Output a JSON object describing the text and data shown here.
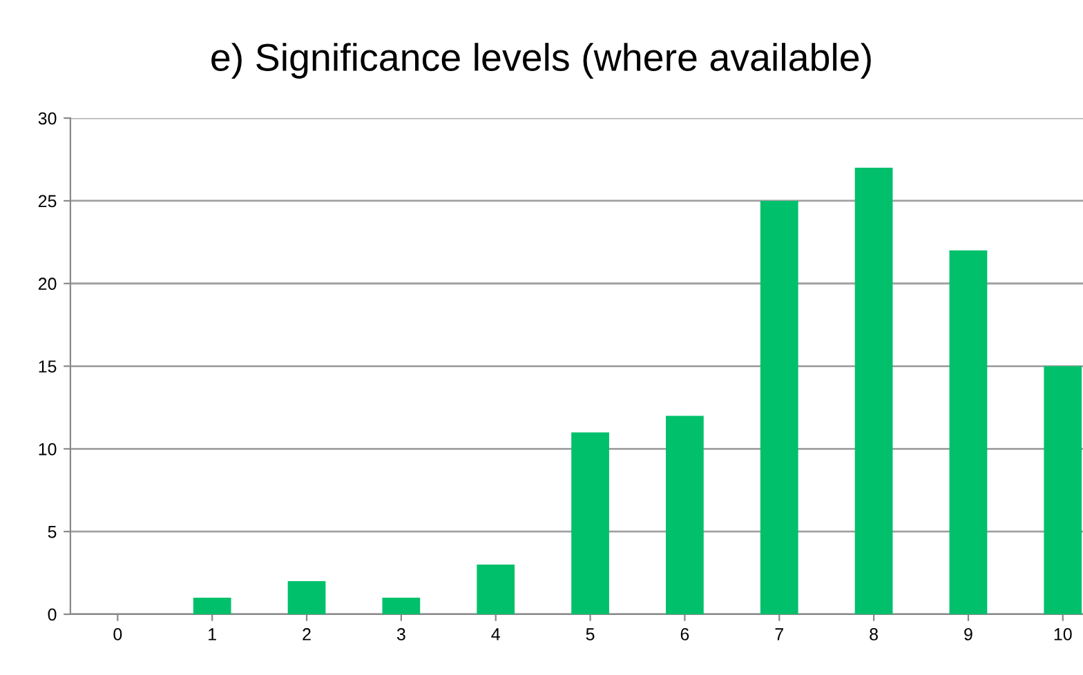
{
  "chart_data": {
    "type": "bar",
    "title": "e) Significance levels (where available)",
    "categories": [
      "0",
      "1",
      "2",
      "3",
      "4",
      "5",
      "6",
      "7",
      "8",
      "9",
      "10"
    ],
    "values": [
      0,
      1,
      2,
      1,
      3,
      11,
      12,
      25,
      27,
      22,
      15
    ],
    "color": "#00c06b",
    "ylim": [
      0,
      30
    ],
    "yticks": [
      0,
      5,
      10,
      15,
      20,
      25,
      30
    ],
    "grid": "y"
  }
}
